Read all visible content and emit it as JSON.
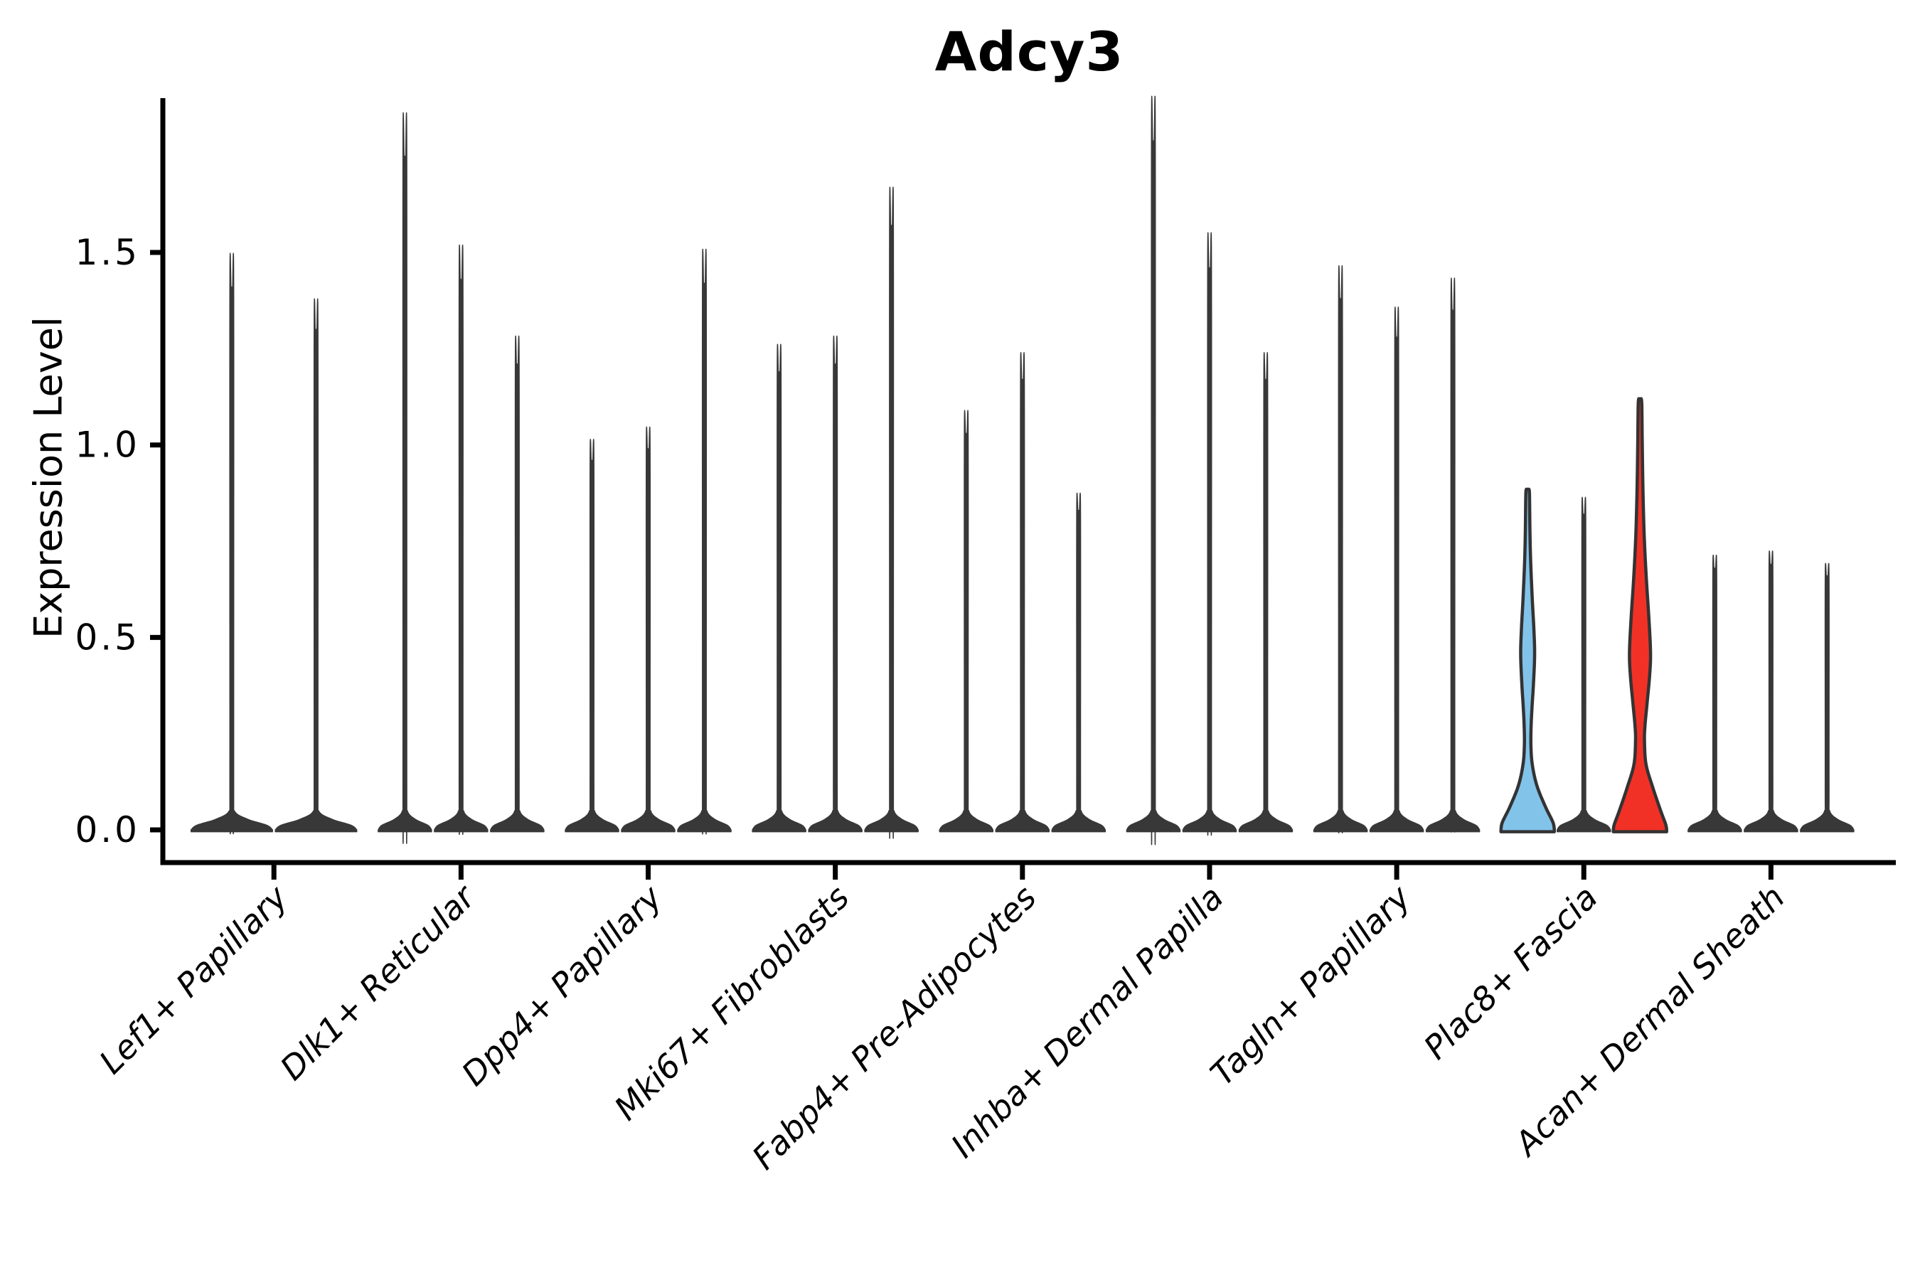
{
  "title": "Adcy3",
  "ylabel": "Expression Level",
  "chart_data": {
    "type": "violin",
    "title": "Adcy3",
    "xlabel": "",
    "ylabel": "Expression Level",
    "ylim": [
      0,
      1.9
    ],
    "yticks": [
      0.0,
      0.5,
      1.0,
      1.5
    ],
    "ytick_labels": [
      "0.0",
      "0.5",
      "1.0",
      "1.5"
    ],
    "grid": false,
    "legend": "none",
    "colors": {
      "violin_dark": "#383838",
      "violin_blue": "#82C3EA",
      "violin_red": "#F23126",
      "outline": "#333333",
      "axis": "#000000"
    },
    "categories": [
      {
        "label": "Lef1+ Papillary",
        "violins": [
          {
            "max": 1.41,
            "fill": "dark"
          },
          {
            "max": 1.3,
            "fill": "dark"
          }
        ]
      },
      {
        "label": "Dlk1+ Reticular",
        "violins": [
          {
            "max": 1.75,
            "fill": "dark"
          },
          {
            "max": 1.43,
            "fill": "dark"
          },
          {
            "max": 1.21,
            "fill": "dark"
          }
        ]
      },
      {
        "label": "Dpp4+ Papillary",
        "violins": [
          {
            "max": 0.96,
            "fill": "dark"
          },
          {
            "max": 0.99,
            "fill": "dark"
          },
          {
            "max": 1.42,
            "fill": "dark"
          }
        ]
      },
      {
        "label": "Mki67+ Fibroblasts",
        "violins": [
          {
            "max": 1.19,
            "fill": "dark"
          },
          {
            "max": 1.21,
            "fill": "dark"
          },
          {
            "max": 1.57,
            "fill": "dark"
          }
        ]
      },
      {
        "label": "Fabp4+ Pre-Adipocytes",
        "violins": [
          {
            "max": 1.03,
            "fill": "dark"
          },
          {
            "max": 1.17,
            "fill": "dark"
          },
          {
            "max": 0.83,
            "fill": "dark"
          }
        ]
      },
      {
        "label": "Inhba+ Dermal Papilla",
        "violins": [
          {
            "max": 1.79,
            "fill": "dark"
          },
          {
            "max": 1.46,
            "fill": "dark"
          },
          {
            "max": 1.17,
            "fill": "dark"
          }
        ]
      },
      {
        "label": "Tagln+ Papillary",
        "violins": [
          {
            "max": 1.38,
            "fill": "dark"
          },
          {
            "max": 1.28,
            "fill": "dark"
          },
          {
            "max": 1.35,
            "fill": "dark"
          }
        ]
      },
      {
        "label": "Plac8+ Fascia",
        "violins": [
          {
            "max": 0.88,
            "fill": "blue",
            "profile": [
              [
                0.885,
                1.8
              ],
              [
                0.87,
                2.6
              ],
              [
                0.78,
                3.2
              ],
              [
                0.7,
                4.2
              ],
              [
                0.6,
                6.5
              ],
              [
                0.52,
                8.8
              ],
              [
                0.455,
                9.8
              ],
              [
                0.38,
                8.2
              ],
              [
                0.32,
                6.2
              ],
              [
                0.27,
                4.9
              ],
              [
                0.22,
                4.6
              ],
              [
                0.17,
                6.5
              ],
              [
                0.115,
                13
              ],
              [
                0.06,
                25
              ],
              [
                0.02,
                35.5
              ],
              [
                0.0,
                37.5
              ]
            ]
          },
          {
            "max": 0.82,
            "fill": "dark"
          },
          {
            "max": 1.12,
            "fill": "red",
            "profile": [
              [
                1.12,
                1.8
              ],
              [
                1.1,
                2.6
              ],
              [
                1.0,
                3.2
              ],
              [
                0.88,
                4.2
              ],
              [
                0.76,
                6.0
              ],
              [
                0.65,
                9.0
              ],
              [
                0.55,
                12.5
              ],
              [
                0.46,
                14.8
              ],
              [
                0.4,
                13.5
              ],
              [
                0.33,
                10.0
              ],
              [
                0.27,
                7.0
              ],
              [
                0.23,
                6.3
              ],
              [
                0.17,
                8.5
              ],
              [
                0.11,
                18.0
              ],
              [
                0.05,
                29.0
              ],
              [
                0.015,
                36.0
              ],
              [
                0.0,
                37.5
              ]
            ]
          }
        ]
      },
      {
        "label": "Acan+ Dermal Sheath",
        "violins": [
          {
            "max": 0.68,
            "fill": "dark"
          },
          {
            "max": 0.69,
            "fill": "dark"
          },
          {
            "max": 0.66,
            "fill": "dark"
          }
        ]
      }
    ]
  }
}
